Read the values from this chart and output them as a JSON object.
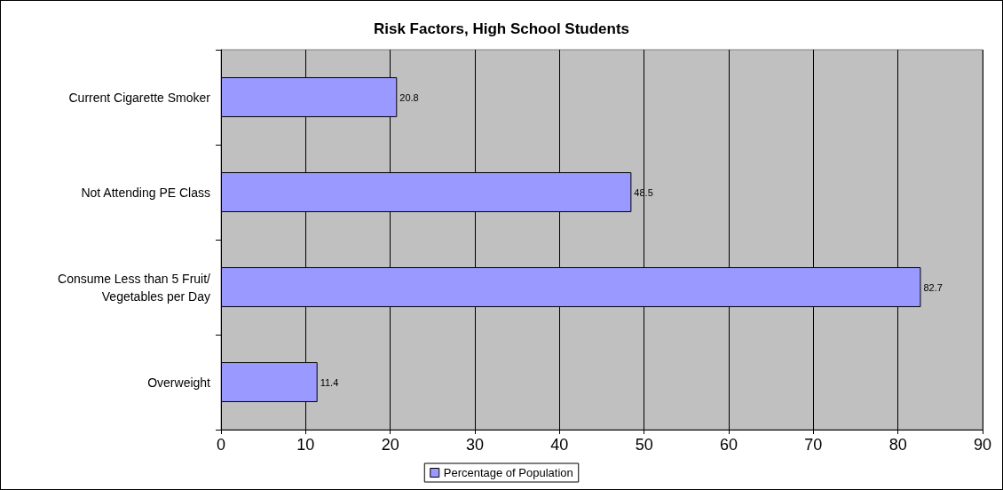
{
  "chart_data": {
    "type": "bar",
    "orientation": "horizontal",
    "title": "Risk Factors, High School Students",
    "categories": [
      "Current Cigarette Smoker",
      "Not Attending PE Class",
      "Consume Less than 5 Fruit/Vegetables per Day",
      "Overweight"
    ],
    "series": [
      {
        "name": "Percentage of Population",
        "color": "#9999ff",
        "values": [
          20.8,
          48.5,
          82.7,
          11.4
        ]
      }
    ],
    "xlim": [
      0,
      90
    ],
    "xticks": [
      0,
      10,
      20,
      30,
      40,
      50,
      60,
      70,
      80,
      90
    ],
    "grid": "x",
    "legend": "bottom",
    "data_labels": true
  }
}
